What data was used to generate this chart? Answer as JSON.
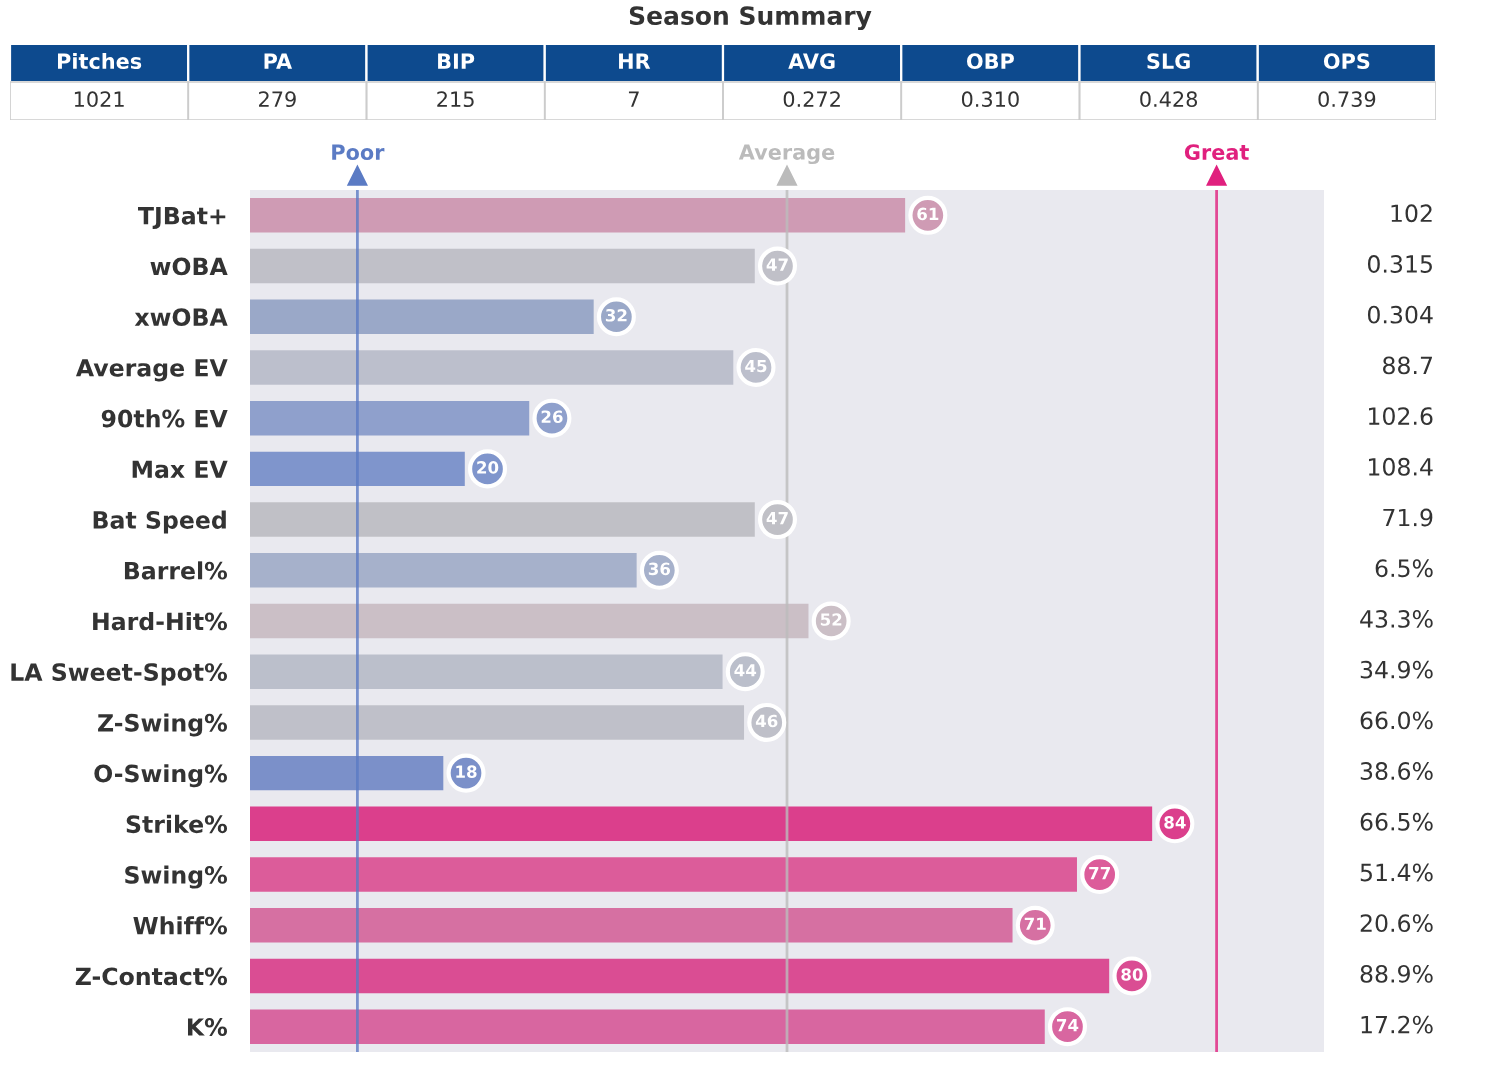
{
  "chart_data": [
    {
      "type": "other",
      "title": "Season Summary",
      "categories": [
        "Pitches",
        "PA",
        "BIP",
        "HR",
        "AVG",
        "OBP",
        "SLG",
        "OPS"
      ],
      "values": [
        1021,
        279,
        215,
        7,
        0.272,
        0.31,
        0.428,
        0.739
      ],
      "value_labels": [
        "1021",
        "279",
        "215",
        "7",
        "0.272",
        "0.310",
        "0.428",
        "0.739"
      ],
      "color": "#0d4a8e"
    },
    {
      "type": "bar",
      "orientation": "horizontal",
      "categories": [
        "TJBat+",
        "wOBA",
        "xwOBA",
        "Average EV",
        "90th% EV",
        "Max EV",
        "Bat Speed",
        "Barrel%",
        "Hard-Hit%",
        "LA Sweet-Spot%",
        "Z-Swing%",
        "O-Swing%",
        "Strike%",
        "Swing%",
        "Whiff%",
        "Z-Contact%",
        "K%"
      ],
      "values": [
        61,
        47,
        32,
        45,
        26,
        20,
        47,
        36,
        52,
        44,
        46,
        18,
        84,
        77,
        71,
        80,
        74
      ],
      "colors": [
        "#cf9bb4",
        "#c0c0c8",
        "#9aa8c8",
        "#bcbfcc",
        "#8fa0cc",
        "#7f95cc",
        "#c0c0c6",
        "#a6b1cb",
        "#cbbfc6",
        "#bbbfcb",
        "#bfc0c9",
        "#7b90c9",
        "#db3f8c",
        "#dc5c9a",
        "#d670a2",
        "#da4d93",
        "#d866a0"
      ],
      "data_labels": true,
      "xlim": [
        0,
        100
      ],
      "tick_labels": "y",
      "ref_lines": [
        {
          "axis": "x",
          "value": 10,
          "label": "Poor",
          "color": "#5b7bc4"
        },
        {
          "axis": "x",
          "value": 50,
          "label": "Average",
          "color": "#bbbbbb"
        },
        {
          "axis": "x",
          "value": 90,
          "label": "Great",
          "color": "#e0207e"
        }
      ],
      "annotations": [
        "102",
        "0.315",
        "0.304",
        "88.7",
        "102.6",
        "108.4",
        "71.9",
        "6.5%",
        "43.3%",
        "34.9%",
        "66.0%",
        "38.6%",
        "66.5%",
        "51.4%",
        "20.6%",
        "88.9%",
        "17.2%"
      ]
    }
  ]
}
